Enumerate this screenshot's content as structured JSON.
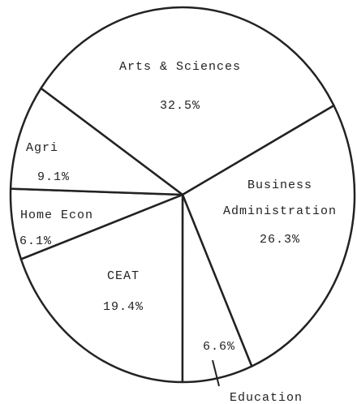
{
  "chart_data": {
    "type": "pie",
    "categories": [
      "Arts & Sciences",
      "Business Administration",
      "Education",
      "CEAT",
      "Home Econ",
      "Agri"
    ],
    "values": [
      32.5,
      26.3,
      6.6,
      19.4,
      6.1,
      9.1
    ],
    "value_labels": [
      "32.5%",
      "26.3%",
      "6.6%",
      "19.4%",
      "6.1%",
      "9.1%"
    ]
  }
}
